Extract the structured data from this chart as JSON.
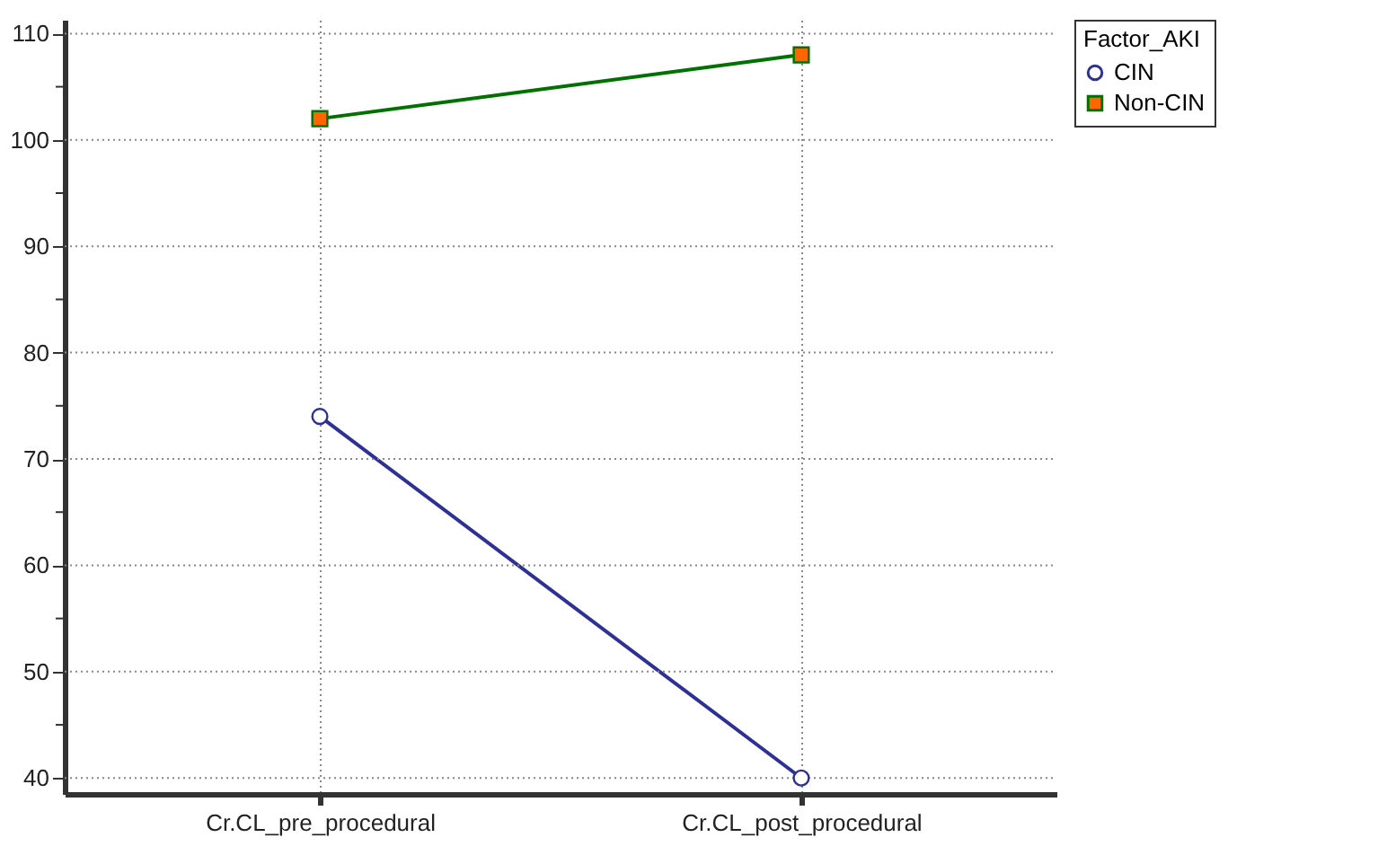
{
  "chart_data": {
    "type": "line",
    "categories": [
      "Cr.CL_pre_procedural",
      "Cr.CL_post_procedural"
    ],
    "series": [
      {
        "name": "CIN",
        "color": "#2e3192",
        "colors": [
          "#ffffff",
          "#ffffff"
        ],
        "marker": "circle",
        "values": [
          74,
          40
        ]
      },
      {
        "name": "Non-CIN",
        "color": "#007000",
        "colors": [
          "#ff6600",
          "#ff6600"
        ],
        "marker": "square",
        "values": [
          102,
          108
        ]
      }
    ],
    "legend_title": "Factor_AKI",
    "legend": "right",
    "ylim": [
      38.5,
      111.3
    ],
    "yticks": [
      40,
      {
        "value": 45,
        "label": null
      },
      50,
      {
        "value": 55,
        "label": null
      },
      60,
      {
        "value": 65,
        "label": null
      },
      70,
      {
        "value": 75,
        "label": null
      },
      80,
      {
        "value": 85,
        "label": null
      },
      90,
      {
        "value": 95,
        "label": null
      },
      100,
      {
        "value": 105,
        "label": null
      },
      110
    ],
    "grid": true,
    "line_style": "solid"
  }
}
